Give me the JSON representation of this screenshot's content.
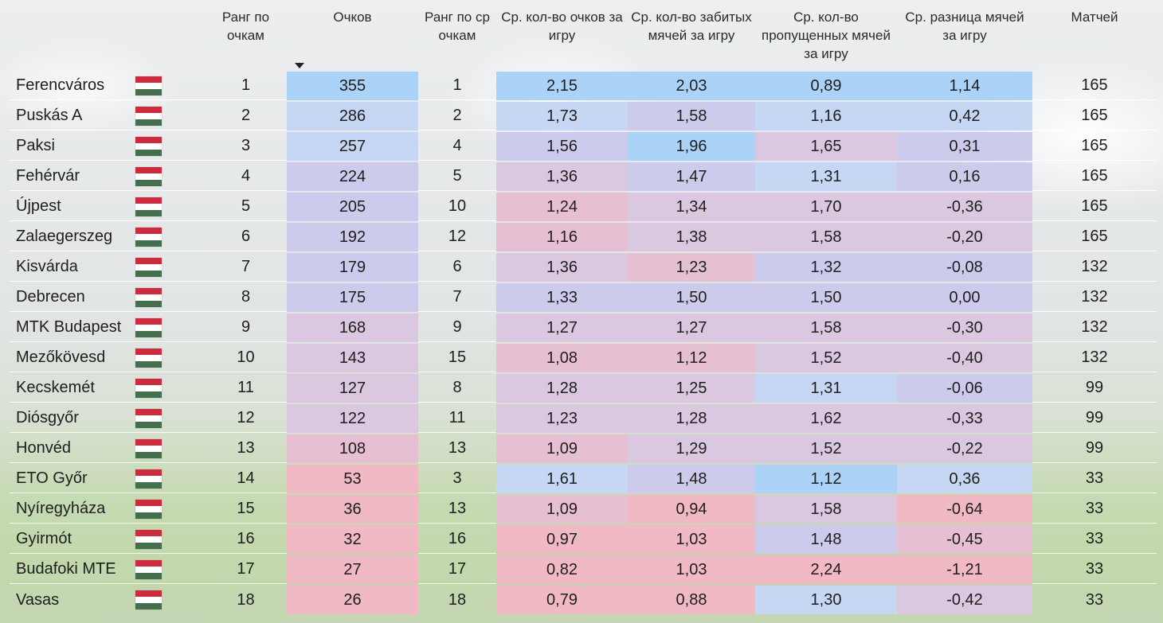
{
  "headers": {
    "team": "",
    "flag": "",
    "rank_points": "Ранг по очкам",
    "points": "Очков",
    "rank_avg": "Ранг по ср очкам",
    "avg_points": "Ср. кол-во очков за игру",
    "avg_scored": "Ср. кол-во забитых мячей за игру",
    "avg_conceded": "Ср. кол-во пропущенных мячей за игру",
    "avg_diff": "Ср. разница мячей за игру",
    "matches": "Матчей"
  },
  "flag_colors": [
    "#cd2a3e",
    "#ffffff",
    "#436f4d"
  ],
  "rows": [
    {
      "team": "Ferencváros",
      "rank_points": "1",
      "points": "355",
      "rank_avg": "1",
      "avg_points": "2,15",
      "avg_scored": "2,03",
      "avg_conceded": "0,89",
      "avg_diff": "1,14",
      "matches": "165"
    },
    {
      "team": "Puskás A",
      "rank_points": "2",
      "points": "286",
      "rank_avg": "2",
      "avg_points": "1,73",
      "avg_scored": "1,58",
      "avg_conceded": "1,16",
      "avg_diff": "0,42",
      "matches": "165"
    },
    {
      "team": "Paksi",
      "rank_points": "3",
      "points": "257",
      "rank_avg": "4",
      "avg_points": "1,56",
      "avg_scored": "1,96",
      "avg_conceded": "1,65",
      "avg_diff": "0,31",
      "matches": "165"
    },
    {
      "team": "Fehérvár",
      "rank_points": "4",
      "points": "224",
      "rank_avg": "5",
      "avg_points": "1,36",
      "avg_scored": "1,47",
      "avg_conceded": "1,31",
      "avg_diff": "0,16",
      "matches": "165"
    },
    {
      "team": "Újpest",
      "rank_points": "5",
      "points": "205",
      "rank_avg": "10",
      "avg_points": "1,24",
      "avg_scored": "1,34",
      "avg_conceded": "1,70",
      "avg_diff": "-0,36",
      "matches": "165"
    },
    {
      "team": "Zalaegerszeg",
      "rank_points": "6",
      "points": "192",
      "rank_avg": "12",
      "avg_points": "1,16",
      "avg_scored": "1,38",
      "avg_conceded": "1,58",
      "avg_diff": "-0,20",
      "matches": "165"
    },
    {
      "team": "Kisvárda",
      "rank_points": "7",
      "points": "179",
      "rank_avg": "6",
      "avg_points": "1,36",
      "avg_scored": "1,23",
      "avg_conceded": "1,32",
      "avg_diff": "-0,08",
      "matches": "132"
    },
    {
      "team": "Debrecen",
      "rank_points": "8",
      "points": "175",
      "rank_avg": "7",
      "avg_points": "1,33",
      "avg_scored": "1,50",
      "avg_conceded": "1,50",
      "avg_diff": "0,00",
      "matches": "132"
    },
    {
      "team": "MTK Budapest",
      "rank_points": "9",
      "points": "168",
      "rank_avg": "9",
      "avg_points": "1,27",
      "avg_scored": "1,27",
      "avg_conceded": "1,58",
      "avg_diff": "-0,30",
      "matches": "132"
    },
    {
      "team": "Mezőkövesd",
      "rank_points": "10",
      "points": "143",
      "rank_avg": "15",
      "avg_points": "1,08",
      "avg_scored": "1,12",
      "avg_conceded": "1,52",
      "avg_diff": "-0,40",
      "matches": "132"
    },
    {
      "team": "Kecskemét",
      "rank_points": "11",
      "points": "127",
      "rank_avg": "8",
      "avg_points": "1,28",
      "avg_scored": "1,25",
      "avg_conceded": "1,31",
      "avg_diff": "-0,06",
      "matches": "99"
    },
    {
      "team": "Diósgyőr",
      "rank_points": "12",
      "points": "122",
      "rank_avg": "11",
      "avg_points": "1,23",
      "avg_scored": "1,28",
      "avg_conceded": "1,62",
      "avg_diff": "-0,33",
      "matches": "99"
    },
    {
      "team": "Honvéd",
      "rank_points": "13",
      "points": "108",
      "rank_avg": "13",
      "avg_points": "1,09",
      "avg_scored": "1,29",
      "avg_conceded": "1,52",
      "avg_diff": "-0,22",
      "matches": "99"
    },
    {
      "team": "ETO Győr",
      "rank_points": "14",
      "points": "53",
      "rank_avg": "3",
      "avg_points": "1,61",
      "avg_scored": "1,48",
      "avg_conceded": "1,12",
      "avg_diff": "0,36",
      "matches": "33"
    },
    {
      "team": "Nyíregyháza",
      "rank_points": "15",
      "points": "36",
      "rank_avg": "13",
      "avg_points": "1,09",
      "avg_scored": "0,94",
      "avg_conceded": "1,58",
      "avg_diff": "-0,64",
      "matches": "33"
    },
    {
      "team": "Gyirmót",
      "rank_points": "16",
      "points": "32",
      "rank_avg": "16",
      "avg_points": "0,97",
      "avg_scored": "1,03",
      "avg_conceded": "1,48",
      "avg_diff": "-0,45",
      "matches": "33"
    },
    {
      "team": "Budafoki MTE",
      "rank_points": "17",
      "points": "27",
      "rank_avg": "17",
      "avg_points": "0,82",
      "avg_scored": "1,03",
      "avg_conceded": "2,24",
      "avg_diff": "-1,21",
      "matches": "33"
    },
    {
      "team": "Vasas",
      "rank_points": "18",
      "points": "26",
      "rank_avg": "18",
      "avg_points": "0,79",
      "avg_scored": "0,88",
      "avg_conceded": "1,30",
      "avg_diff": "-0,42",
      "matches": "33"
    }
  ],
  "heat_colors": {
    "b1": "#bfe0fb",
    "b2": "#c5d7f2",
    "p1": "#cdcbeb",
    "p2": "#d9c8e0",
    "r1": "#e6c0d2",
    "r2": "#f0b9c3",
    "lb": "#abd3f8"
  }
}
